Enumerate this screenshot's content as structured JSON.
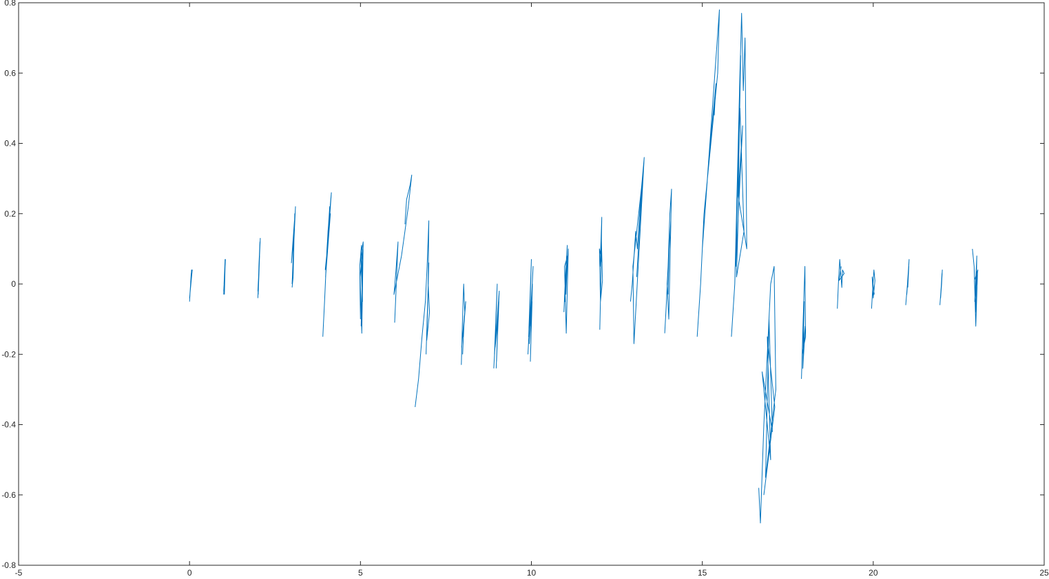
{
  "chart_data": {
    "type": "line",
    "title": "",
    "xlabel": "",
    "ylabel": "",
    "xlim": [
      -5,
      25
    ],
    "ylim": [
      -0.8,
      0.8
    ],
    "grid": false,
    "legend": "none",
    "box": true,
    "x_ticks": [
      -5,
      0,
      5,
      10,
      15,
      20,
      25
    ],
    "y_ticks": [
      -0.8,
      -0.6,
      -0.4,
      -0.2,
      0,
      0.2,
      0.4,
      0.6,
      0.8
    ],
    "x_tick_labels": [
      "-5",
      "0",
      "5",
      "10",
      "15",
      "20",
      "25"
    ],
    "y_tick_labels": [
      "-0.8",
      "-0.6",
      "-0.4",
      "-0.2",
      "0",
      "0.2",
      "0.4",
      "0.6",
      "0.8"
    ],
    "line_color": "#0072BD",
    "series": [
      {
        "segments": [
          {
            "x": [
              0.0,
              0.03,
              0.05,
              0.02,
              0.06,
              0.04,
              0.01,
              0.05,
              0.08,
              0.03,
              0.0
            ],
            "y": [
              -0.05,
              0.0,
              0.03,
              -0.02,
              0.04,
              0.01,
              -0.03,
              0.02,
              0.04,
              -0.01,
              -0.04
            ]
          },
          {
            "x": [
              1.0,
              1.02,
              1.04,
              1.01,
              1.05,
              1.03,
              1.0,
              1.04,
              1.02
            ],
            "y": [
              -0.03,
              0.02,
              0.07,
              0.0,
              0.07,
              0.03,
              -0.02,
              0.05,
              -0.03
            ]
          },
          {
            "x": [
              2.0,
              2.03,
              2.06,
              2.02,
              2.07,
              2.04,
              2.0,
              2.05,
              2.01
            ],
            "y": [
              -0.04,
              0.05,
              0.12,
              0.02,
              0.13,
              0.06,
              -0.02,
              0.08,
              -0.03
            ]
          },
          {
            "x": [
              3.0,
              3.05,
              3.08,
              3.02,
              3.1,
              3.06,
              2.98,
              3.07,
              3.03,
              3.0
            ],
            "y": [
              0.0,
              0.12,
              0.2,
              0.05,
              0.22,
              0.14,
              0.06,
              0.18,
              0.02,
              -0.01
            ]
          },
          {
            "x": [
              3.9,
              3.95,
              4.02,
              4.1,
              4.0,
              4.15,
              4.05,
              3.98,
              4.12,
              4.03,
              3.97
            ],
            "y": [
              -0.15,
              -0.05,
              0.1,
              0.22,
              0.05,
              0.26,
              0.15,
              0.02,
              0.2,
              0.1,
              0.04
            ]
          },
          {
            "x": [
              5.0,
              4.98,
              5.03,
              5.06,
              5.01,
              5.08,
              5.04,
              4.99,
              5.07,
              5.02
            ],
            "y": [
              -0.1,
              0.05,
              0.11,
              -0.05,
              0.08,
              0.12,
              -0.14,
              0.02,
              0.1,
              -0.12
            ]
          },
          {
            "x": [
              6.0,
              6.05,
              6.1,
              6.03,
              5.98,
              6.2,
              6.3,
              6.4,
              6.5,
              6.45,
              6.35,
              6.3
            ],
            "y": [
              -0.11,
              0.0,
              0.12,
              0.03,
              -0.03,
              0.08,
              0.15,
              0.22,
              0.31,
              0.28,
              0.24,
              0.17
            ]
          },
          {
            "x": [
              6.6,
              6.7,
              6.8,
              6.9,
              6.95,
              7.0,
              6.98,
              7.02,
              6.94,
              7.0,
              6.92
            ],
            "y": [
              -0.35,
              -0.27,
              -0.15,
              -0.05,
              0.05,
              0.18,
              0.0,
              -0.08,
              -0.16,
              0.06,
              -0.2
            ]
          },
          {
            "x": [
              7.95,
              7.98,
              8.02,
              8.05,
              8.0,
              8.08,
              7.96,
              8.04,
              7.99
            ],
            "y": [
              -0.23,
              -0.12,
              0.0,
              -0.08,
              -0.15,
              -0.05,
              -0.18,
              -0.09,
              -0.2
            ]
          },
          {
            "x": [
              8.9,
              8.95,
              9.0,
              8.92,
              9.05,
              8.98,
              9.02,
              8.94,
              9.06,
              8.97
            ],
            "y": [
              -0.24,
              -0.15,
              0.0,
              -0.2,
              -0.05,
              -0.22,
              -0.1,
              -0.18,
              -0.02,
              -0.24
            ]
          },
          {
            "x": [
              9.9,
              9.95,
              10.0,
              9.92,
              10.03,
              9.97,
              10.02,
              9.94,
              10.05,
              9.96
            ],
            "y": [
              -0.2,
              -0.1,
              0.07,
              -0.15,
              0.0,
              -0.22,
              -0.05,
              -0.17,
              0.05,
              -0.12
            ]
          },
          {
            "x": [
              10.95,
              11.0,
              11.05,
              10.98,
              11.08,
              11.02,
              10.97,
              11.06,
              11.01
            ],
            "y": [
              -0.08,
              0.03,
              0.11,
              -0.05,
              0.1,
              -0.14,
              0.05,
              0.08,
              -0.03
            ]
          },
          {
            "x": [
              12.0,
              12.03,
              12.06,
              12.01,
              12.05,
              12.08,
              12.02,
              11.99,
              12.07
            ],
            "y": [
              -0.13,
              0.0,
              0.19,
              0.05,
              0.12,
              0.01,
              -0.05,
              0.1,
              0.06
            ]
          },
          {
            "x": [
              12.9,
              12.95,
              13.05,
              13.1,
              13.2,
              13.3,
              13.0,
              12.97,
              13.25,
              13.08
            ],
            "y": [
              -0.05,
              0.0,
              0.15,
              0.1,
              0.25,
              0.36,
              -0.17,
              0.05,
              0.3,
              0.02
            ]
          },
          {
            "x": [
              13.9,
              13.95,
              14.0,
              14.05,
              14.1,
              14.02,
              13.97,
              14.08,
              14.03,
              14.0
            ],
            "y": [
              -0.14,
              -0.05,
              0.05,
              0.2,
              0.27,
              -0.1,
              0.0,
              0.18,
              0.1,
              -0.03
            ]
          },
          {
            "x": [
              14.85,
              14.95,
              15.05,
              15.1,
              15.2,
              15.3,
              15.45,
              15.5,
              15.0,
              15.15,
              15.25,
              15.4,
              15.35
            ],
            "y": [
              -0.15,
              0.0,
              0.2,
              0.25,
              0.35,
              0.45,
              0.6,
              0.78,
              0.1,
              0.3,
              0.42,
              0.57,
              0.48
            ]
          },
          {
            "x": [
              15.85,
              15.95,
              16.0,
              16.05,
              16.1,
              16.15,
              16.2,
              16.25,
              16.3,
              16.05,
              16.12,
              15.98,
              16.18,
              16.08,
              16.0,
              16.22,
              16.1,
              15.95
            ],
            "y": [
              -0.15,
              0.0,
              0.2,
              0.4,
              0.6,
              0.77,
              0.55,
              0.7,
              0.1,
              0.25,
              0.65,
              0.05,
              0.45,
              0.3,
              0.02,
              0.15,
              0.5,
              0.0
            ]
          },
          {
            "x": [
              16.65,
              16.7,
              16.8,
              16.9,
              17.0,
              17.1,
              17.15,
              16.85,
              16.95,
              17.05,
              16.75,
              17.0,
              16.9,
              17.12,
              16.8
            ],
            "y": [
              -0.58,
              -0.68,
              -0.4,
              -0.2,
              0.0,
              0.05,
              -0.3,
              -0.55,
              -0.1,
              -0.42,
              -0.25,
              -0.5,
              -0.15,
              -0.35,
              -0.6
            ]
          },
          {
            "x": [
              17.9,
              17.95,
              18.0,
              18.02,
              17.92,
              17.98,
              17.94,
              18.01,
              17.96
            ],
            "y": [
              -0.27,
              -0.1,
              0.05,
              -0.15,
              -0.2,
              -0.05,
              -0.24,
              -0.12,
              -0.17
            ]
          },
          {
            "x": [
              18.95,
              18.98,
              19.02,
              19.05,
              19.08,
              19.1,
              19.15,
              19.0,
              19.06
            ],
            "y": [
              -0.07,
              0.0,
              0.07,
              0.03,
              -0.01,
              0.04,
              0.03,
              0.01,
              0.05
            ]
          },
          {
            "x": [
              19.95,
              19.98,
              20.02,
              20.05,
              20.0,
              19.97,
              20.03
            ],
            "y": [
              -0.07,
              -0.02,
              0.04,
              0.01,
              -0.04,
              0.02,
              -0.03
            ]
          },
          {
            "x": [
              20.95,
              21.0,
              21.05,
              21.02,
              20.98,
              21.04,
              21.01
            ],
            "y": [
              -0.06,
              0.0,
              0.07,
              0.02,
              -0.03,
              0.05,
              -0.01
            ]
          },
          {
            "x": [
              21.95,
              21.98,
              22.02,
              22.0,
              21.97,
              22.01,
              21.99
            ],
            "y": [
              -0.06,
              -0.02,
              0.04,
              0.0,
              -0.04,
              0.03,
              -0.01
            ]
          },
          {
            "x": [
              22.9,
              22.95,
              23.0,
              23.05,
              22.97,
              23.03,
              23.0,
              22.96,
              23.06,
              22.98
            ],
            "y": [
              0.1,
              0.05,
              -0.12,
              0.03,
              -0.05,
              0.08,
              -0.08,
              0.01,
              0.04,
              -0.02
            ]
          }
        ]
      }
    ]
  }
}
